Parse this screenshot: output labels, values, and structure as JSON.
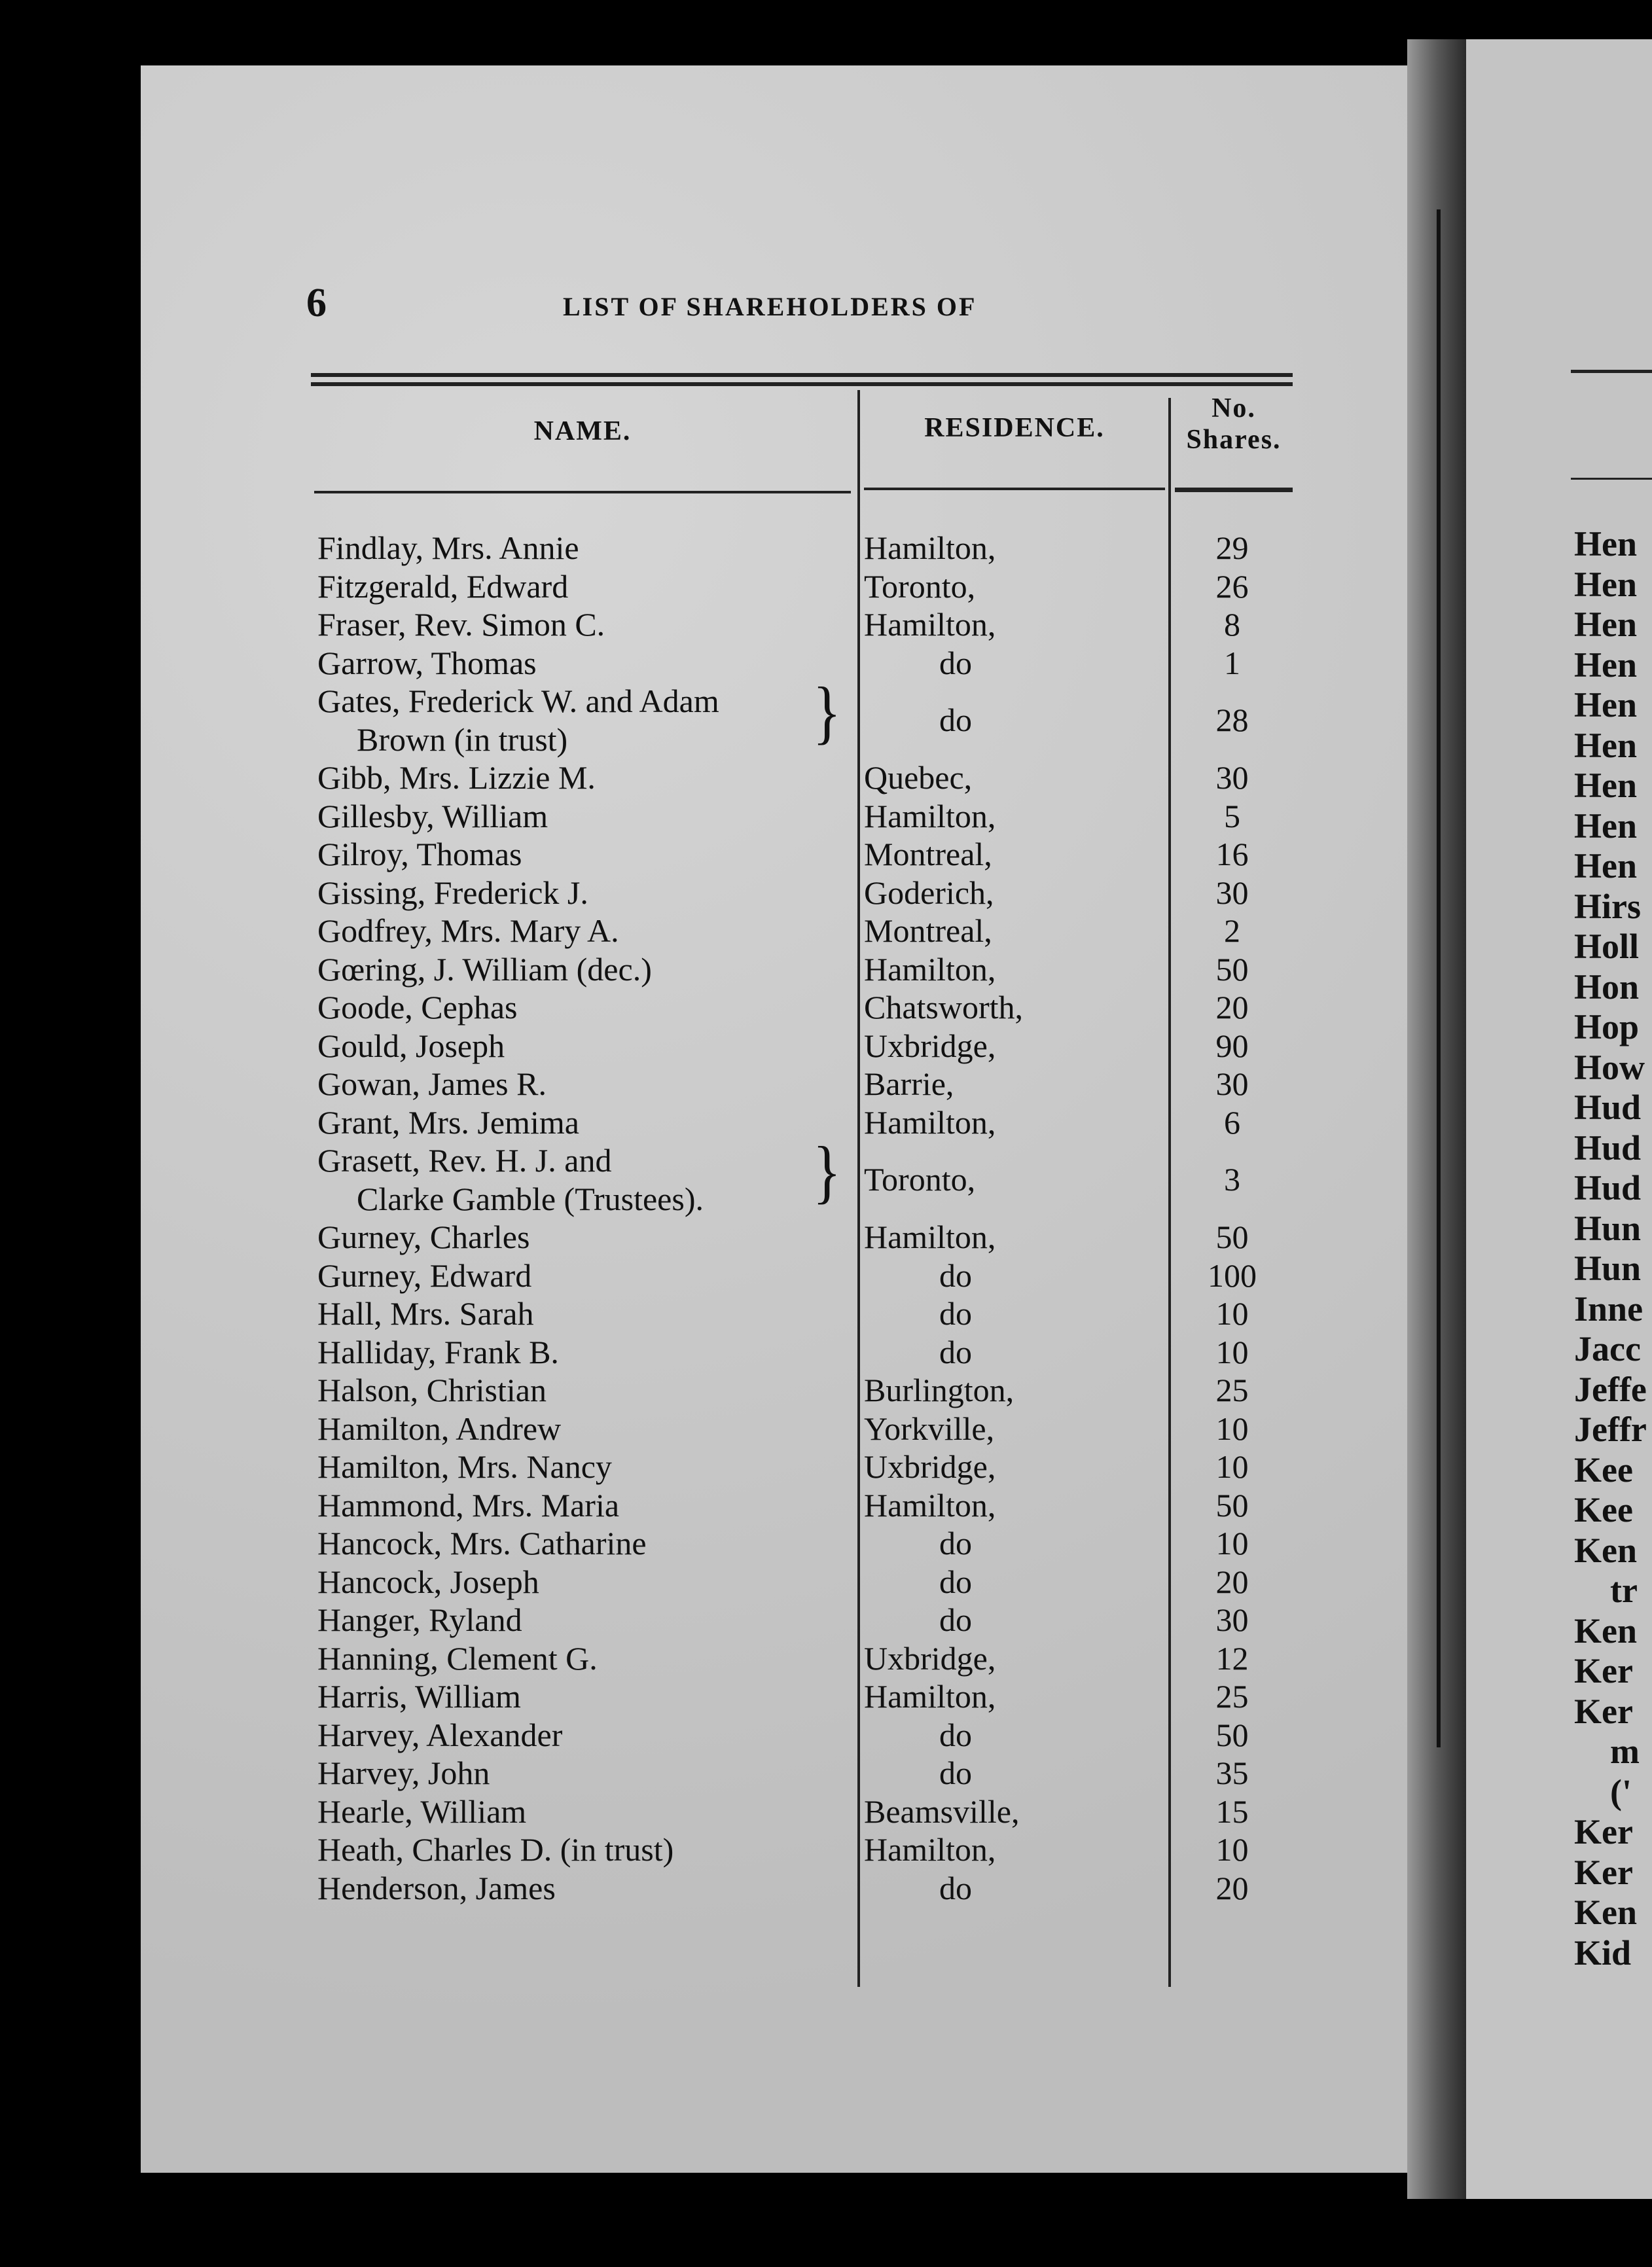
{
  "page_number": "6",
  "title": "LIST OF SHAREHOLDERS OF",
  "columns": {
    "name": "NAME.",
    "residence": "RESIDENCE.",
    "shares_line1": "No.",
    "shares_line2": "Shares."
  },
  "rows": [
    {
      "name": "Findlay, Mrs. Annie",
      "residence": "Hamilton,",
      "shares": "29"
    },
    {
      "name": "Fitzgerald, Edward",
      "residence": "Toronto,",
      "shares": "26"
    },
    {
      "name": "Fraser, Rev. Simon C.",
      "residence": "Hamilton,",
      "shares": "8"
    },
    {
      "name": "Garrow, Thomas",
      "residence": "do",
      "shares": "1"
    },
    {
      "name": "Gates, Frederick W. and Adam",
      "name2": "Brown (in trust)",
      "residence": "do",
      "shares": "28"
    },
    {
      "name": "Gibb, Mrs. Lizzie M.",
      "residence": "Quebec,",
      "shares": "30"
    },
    {
      "name": "Gillesby, William",
      "residence": "Hamilton,",
      "shares": "5"
    },
    {
      "name": "Gilroy, Thomas",
      "residence": "Montreal,",
      "shares": "16"
    },
    {
      "name": "Gissing, Frederick J.",
      "residence": "Goderich,",
      "shares": "30"
    },
    {
      "name": "Godfrey, Mrs. Mary A.",
      "residence": "Montreal,",
      "shares": "2"
    },
    {
      "name": "Gœring, J. William (dec.)",
      "residence": "Hamilton,",
      "shares": "50"
    },
    {
      "name": "Goode, Cephas",
      "residence": "Chatsworth,",
      "shares": "20"
    },
    {
      "name": "Gould, Joseph",
      "residence": "Uxbridge,",
      "shares": "90"
    },
    {
      "name": "Gowan, James R.",
      "residence": "Barrie,",
      "shares": "30"
    },
    {
      "name": "Grant, Mrs. Jemima",
      "residence": "Hamilton,",
      "shares": "6"
    },
    {
      "name": "Grasett, Rev. H. J. and",
      "name2": "Clarke Gamble (Trustees).",
      "residence": "Toronto,",
      "shares": "3"
    },
    {
      "name": "Gurney, Charles",
      "residence": "Hamilton,",
      "shares": "50"
    },
    {
      "name": "Gurney, Edward",
      "residence": "do",
      "shares": "100"
    },
    {
      "name": "Hall, Mrs. Sarah",
      "residence": "do",
      "shares": "10"
    },
    {
      "name": "Halliday, Frank B.",
      "residence": "do",
      "shares": "10"
    },
    {
      "name": "Halson, Christian",
      "residence": "Burlington,",
      "shares": "25"
    },
    {
      "name": "Hamilton, Andrew",
      "residence": "Yorkville,",
      "shares": "10"
    },
    {
      "name": "Hamilton, Mrs. Nancy",
      "residence": "Uxbridge,",
      "shares": "10"
    },
    {
      "name": "Hammond, Mrs. Maria",
      "residence": "Hamilton,",
      "shares": "50"
    },
    {
      "name": "Hancock, Mrs. Catharine",
      "residence": "do",
      "shares": "10"
    },
    {
      "name": "Hancock, Joseph",
      "residence": "do",
      "shares": "20"
    },
    {
      "name": "Hanger, Ryland",
      "residence": "do",
      "shares": "30"
    },
    {
      "name": "Hanning, Clement G.",
      "residence": "Uxbridge,",
      "shares": "12"
    },
    {
      "name": "Harris, William",
      "residence": "Hamilton,",
      "shares": "25"
    },
    {
      "name": "Harvey, Alexander",
      "residence": "do",
      "shares": "50"
    },
    {
      "name": "Harvey, John",
      "residence": "do",
      "shares": "35"
    },
    {
      "name": "Hearle, William",
      "residence": "Beamsville,",
      "shares": "15"
    },
    {
      "name": "Heath, Charles D. (in trust)",
      "residence": "Hamilton,",
      "shares": "10"
    },
    {
      "name": "Henderson, James",
      "residence": "do",
      "shares": "20"
    }
  ],
  "facing_page_fragments": [
    "Hen",
    "Hen",
    "Hen",
    "Hen",
    "Hen",
    "Hen",
    "Hen",
    "Hen",
    "Hen",
    "Hirs",
    "Holl",
    "Hon",
    "Hop",
    "How",
    "Hud",
    "Hud",
    "Hud",
    "Hun",
    "Hun",
    "Inne",
    "Jacc",
    "Jeffe",
    "Jeffr",
    "Kee",
    "Kee",
    "Ken",
    "tr",
    "Ken",
    "Ker",
    "Ker",
    "m",
    "('",
    "Ker",
    "Ker",
    "Ken",
    "Kid"
  ]
}
